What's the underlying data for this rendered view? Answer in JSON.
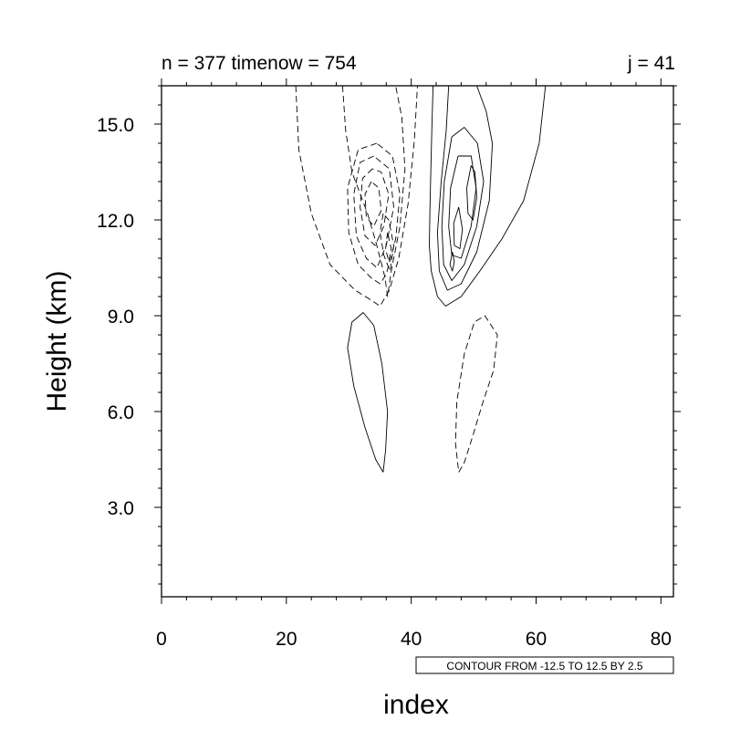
{
  "chart_data": {
    "type": "contour",
    "left_title": "n = 377 timenow = 754",
    "right_title": "j = 41",
    "xlabel": "index",
    "ylabel": "Height (km)",
    "xlim": [
      0,
      82
    ],
    "ylim": [
      0.2,
      16.2
    ],
    "x_ticks": [
      0,
      20,
      40,
      60,
      80
    ],
    "x_tick_labels": [
      "0",
      "20",
      "40",
      "60",
      "80"
    ],
    "y_ticks": [
      3.0,
      6.0,
      9.0,
      12.0,
      15.0
    ],
    "y_tick_labels": [
      "3.0",
      "6.0",
      "9.0",
      "12.0",
      "15.0"
    ],
    "contour_info": "CONTOUR FROM -12.5 TO 12.5 BY 2.5",
    "contour_levels": {
      "min": -12.5,
      "max": 12.5,
      "step": 2.5
    },
    "negative_contours": "dashed",
    "positive_contours": "solid",
    "grid": false,
    "contours": [
      {
        "sign": "negative",
        "points": [
          [
            21.5,
            16.2
          ],
          [
            22,
            14.2
          ],
          [
            24,
            12.2
          ],
          [
            27,
            10.6
          ],
          [
            31,
            9.8
          ],
          [
            33.5,
            9.5
          ],
          [
            35,
            9.3
          ],
          [
            36.5,
            9.8
          ],
          [
            38,
            10.8
          ],
          [
            39.5,
            12.5
          ],
          [
            40.5,
            14.5
          ],
          [
            41,
            16.2
          ]
        ]
      },
      {
        "sign": "negative",
        "points": [
          [
            29,
            16.2
          ],
          [
            29.5,
            14.8
          ],
          [
            30.5,
            13.5
          ],
          [
            33,
            12.2
          ],
          [
            34.5,
            11.2
          ],
          [
            35.8,
            10.2
          ],
          [
            36.2,
            9.6
          ],
          [
            36.8,
            10.4
          ],
          [
            38.2,
            11.8
          ],
          [
            39,
            13.6
          ],
          [
            38.5,
            15.2
          ],
          [
            37.5,
            16.2
          ]
        ]
      },
      {
        "sign": "negative",
        "points": [
          [
            34.5,
            14.4
          ],
          [
            31.5,
            14.2
          ],
          [
            29.8,
            13
          ],
          [
            30,
            11.6
          ],
          [
            31.5,
            10.6
          ],
          [
            33.5,
            10.2
          ],
          [
            35,
            10
          ],
          [
            36,
            10.3
          ],
          [
            37.5,
            11.4
          ],
          [
            38.2,
            12.8
          ],
          [
            37,
            14
          ],
          [
            34.5,
            14.4
          ]
        ]
      },
      {
        "sign": "negative",
        "points": [
          [
            34,
            14
          ],
          [
            31.8,
            13.8
          ],
          [
            30.8,
            12.8
          ],
          [
            31.2,
            11.5
          ],
          [
            32.8,
            10.8
          ],
          [
            34.5,
            10.5
          ],
          [
            36,
            11.2
          ],
          [
            37.2,
            12.4
          ],
          [
            36.5,
            13.6
          ],
          [
            34,
            14
          ]
        ]
      },
      {
        "sign": "negative",
        "points": [
          [
            33.8,
            13.6
          ],
          [
            32.2,
            13.3
          ],
          [
            31.8,
            12.4
          ],
          [
            32.6,
            11.5
          ],
          [
            34.2,
            11.2
          ],
          [
            35.6,
            11.8
          ],
          [
            36.4,
            12.8
          ],
          [
            35.2,
            13.5
          ],
          [
            33.8,
            13.6
          ]
        ]
      },
      {
        "sign": "negative",
        "points": [
          [
            33.6,
            13.2
          ],
          [
            32.6,
            12.8
          ],
          [
            32.8,
            12.1
          ],
          [
            34,
            11.8
          ],
          [
            35.2,
            12.3
          ],
          [
            34.8,
            13
          ],
          [
            33.6,
            13.2
          ]
        ]
      },
      {
        "sign": "negative",
        "points": [
          [
            35.5,
            12.2
          ],
          [
            35,
            11.6
          ],
          [
            35.6,
            10.9
          ],
          [
            36.6,
            10.4
          ],
          [
            37.2,
            11.2
          ],
          [
            36.4,
            12
          ],
          [
            35.5,
            12.2
          ]
        ]
      },
      {
        "sign": "negative",
        "points": [
          [
            36.2,
            11.6
          ],
          [
            35.9,
            11.1
          ],
          [
            36.4,
            10.7
          ],
          [
            36.8,
            11.1
          ],
          [
            36.2,
            11.6
          ]
        ]
      },
      {
        "sign": "positive",
        "points": [
          [
            43.5,
            16.2
          ],
          [
            43.3,
            14.8
          ],
          [
            43,
            12.4
          ],
          [
            42.9,
            11.2
          ],
          [
            43.2,
            10.4
          ],
          [
            44.2,
            9.6
          ],
          [
            45.5,
            9.3
          ],
          [
            48,
            9.6
          ],
          [
            51,
            10.4
          ],
          [
            54.5,
            11.4
          ],
          [
            58,
            12.6
          ],
          [
            60.5,
            14.4
          ],
          [
            61.5,
            16.2
          ]
        ]
      },
      {
        "sign": "positive",
        "points": [
          [
            46,
            16.2
          ],
          [
            45.6,
            14.8
          ],
          [
            44.8,
            13.2
          ],
          [
            44.2,
            11.6
          ],
          [
            44.5,
            10.4
          ],
          [
            45.8,
            9.8
          ],
          [
            48,
            10
          ],
          [
            50.5,
            11
          ],
          [
            52.5,
            12.6
          ],
          [
            53,
            14.4
          ],
          [
            52,
            15.4
          ],
          [
            50.5,
            16.2
          ]
        ]
      },
      {
        "sign": "positive",
        "points": [
          [
            46.5,
            14.6
          ],
          [
            45.3,
            13.2
          ],
          [
            44.9,
            11.8
          ],
          [
            45.2,
            10.6
          ],
          [
            46.5,
            10.1
          ],
          [
            48.5,
            10.6
          ],
          [
            50.5,
            11.8
          ],
          [
            51.6,
            13.2
          ],
          [
            50.6,
            14.4
          ],
          [
            48.5,
            14.9
          ],
          [
            46.5,
            14.6
          ]
        ]
      },
      {
        "sign": "positive",
        "points": [
          [
            47.5,
            14
          ],
          [
            46.3,
            13
          ],
          [
            46,
            11.8
          ],
          [
            46.5,
            10.9
          ],
          [
            48,
            10.8
          ],
          [
            49.6,
            11.8
          ],
          [
            50.4,
            13
          ],
          [
            49.6,
            14
          ],
          [
            47.5,
            14
          ]
        ]
      },
      {
        "sign": "positive",
        "points": [
          [
            49.6,
            13.7
          ],
          [
            48.9,
            13
          ],
          [
            49.1,
            12.2
          ],
          [
            49.9,
            12
          ],
          [
            50.5,
            12.7
          ],
          [
            50.2,
            13.5
          ],
          [
            49.6,
            13.7
          ]
        ]
      },
      {
        "sign": "positive",
        "points": [
          [
            47.6,
            12.4
          ],
          [
            46.8,
            11.9
          ],
          [
            46.9,
            11.2
          ],
          [
            47.8,
            11.1
          ],
          [
            48.2,
            11.7
          ],
          [
            47.6,
            12.4
          ]
        ]
      },
      {
        "sign": "positive",
        "points": [
          [
            46.6,
            11
          ],
          [
            46.2,
            10.6
          ],
          [
            46.6,
            10.4
          ],
          [
            46.9,
            10.7
          ],
          [
            46.6,
            11
          ]
        ]
      },
      {
        "sign": "positive",
        "points": [
          [
            35.5,
            4.1
          ],
          [
            34.3,
            4.5
          ],
          [
            32.6,
            5.5
          ],
          [
            30.8,
            6.8
          ],
          [
            29.8,
            8
          ],
          [
            30.5,
            8.8
          ],
          [
            32.3,
            9.1
          ],
          [
            34,
            8.7
          ],
          [
            35.3,
            7.5
          ],
          [
            36.2,
            6
          ],
          [
            35.9,
            4.8
          ],
          [
            35.5,
            4.1
          ]
        ]
      },
      {
        "sign": "negative",
        "points": [
          [
            47.6,
            4.1
          ],
          [
            48.5,
            4.4
          ],
          [
            49.8,
            5.2
          ],
          [
            51.5,
            6.3
          ],
          [
            53.2,
            7.3
          ],
          [
            53.8,
            8.4
          ],
          [
            51.8,
            9
          ],
          [
            50.1,
            8.8
          ],
          [
            48.5,
            7.8
          ],
          [
            47.3,
            6.3
          ],
          [
            47.1,
            5
          ],
          [
            47.6,
            4.1
          ]
        ]
      }
    ]
  }
}
